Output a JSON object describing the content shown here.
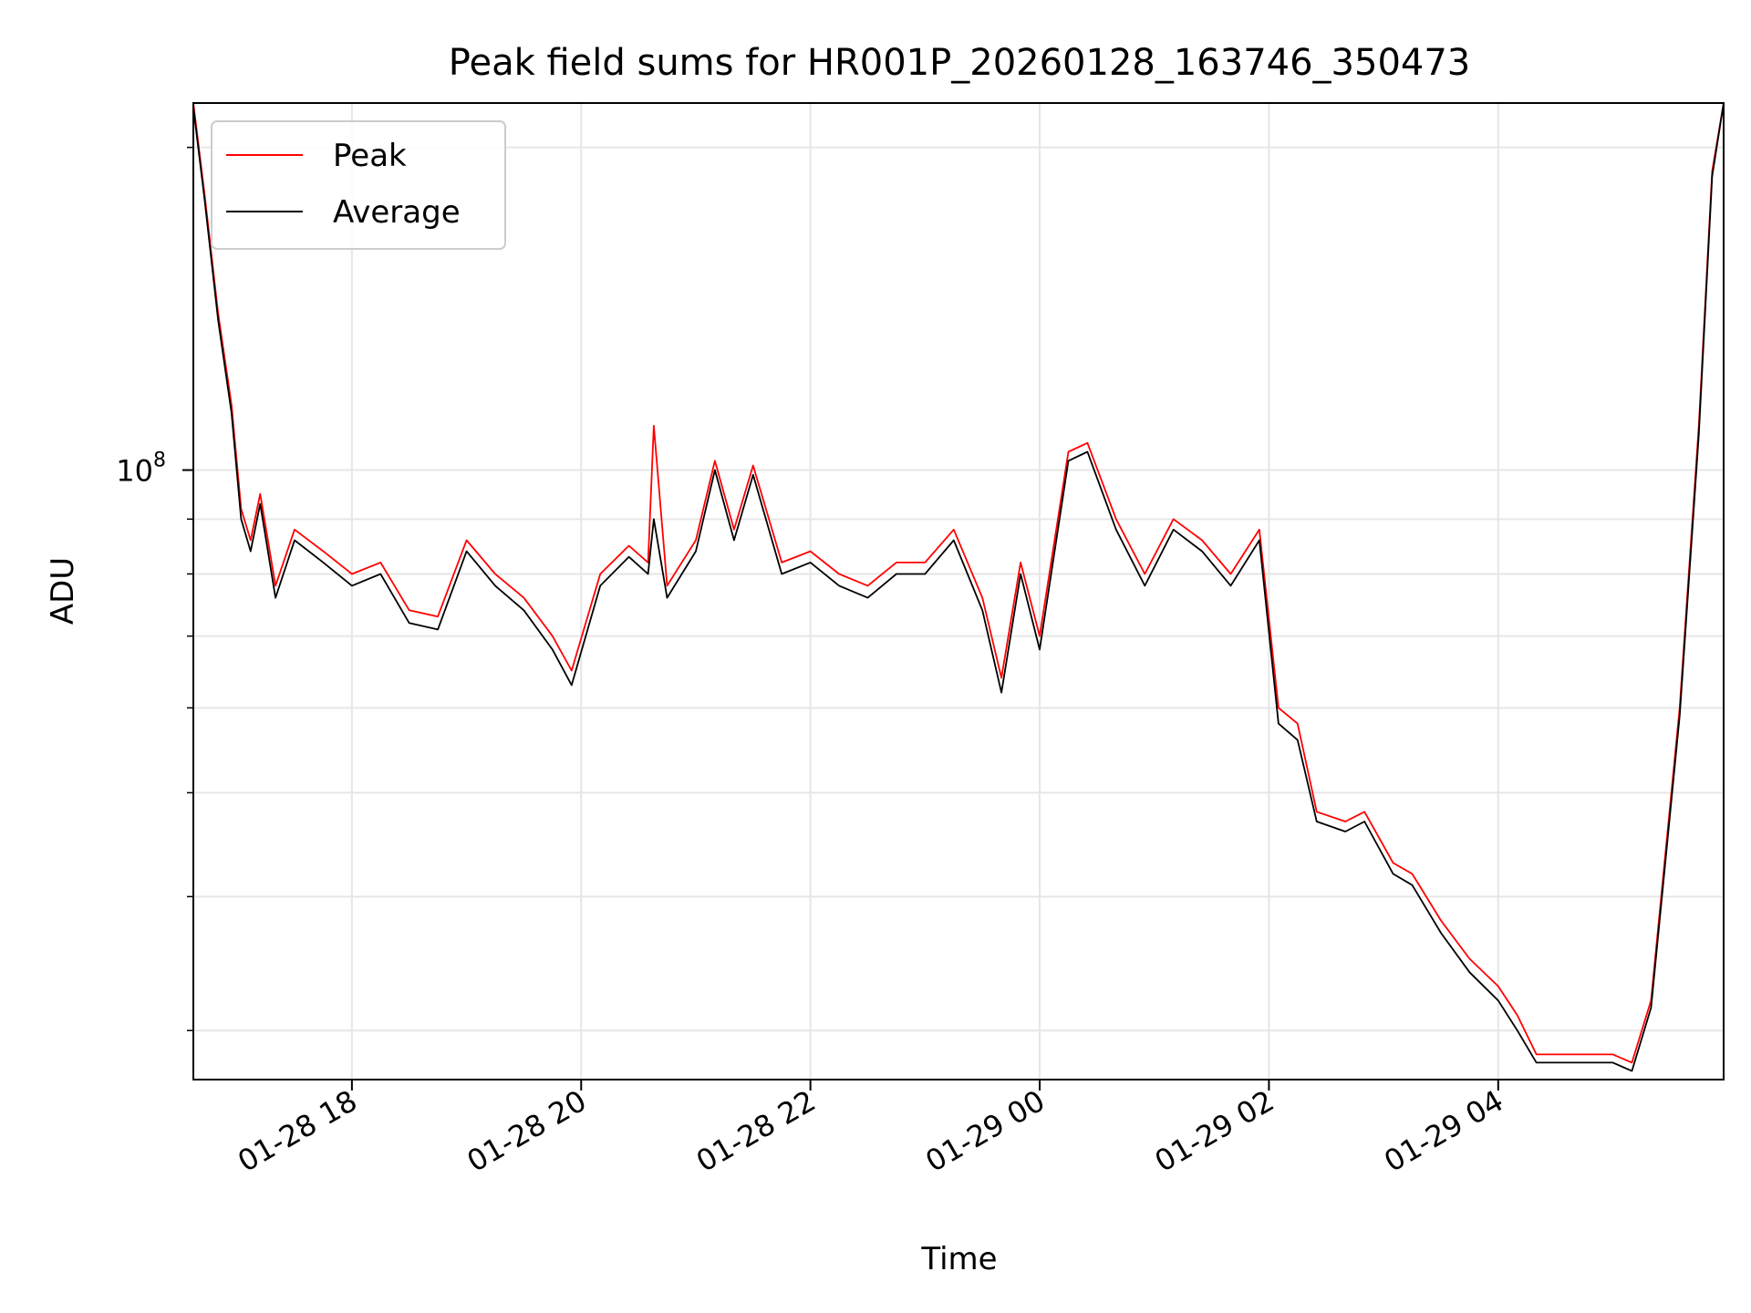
{
  "chart_data": {
    "type": "line",
    "title": "Peak field sums for HR001P_20260128_163746_350473",
    "xlabel": "Time",
    "ylabel": "ADU",
    "x_tick_labels": [
      "01-28 18",
      "01-28 20",
      "01-28 22",
      "01-29 00",
      "01-29 02",
      "01-29 04"
    ],
    "x_ticks": [
      "2026-01-28 18:00",
      "2026-01-28 20:00",
      "2026-01-28 22:00",
      "2026-01-29 00:00",
      "2026-01-29 02:00",
      "2026-01-29 04:00"
    ],
    "xlim": [
      "2026-01-28 16:37",
      "2026-01-29 05:58"
    ],
    "y_scale": "log",
    "y_tick_base": "10",
    "y_tick_exp": "8",
    "y_major_tick": 100000000,
    "y_minor_ticks": [
      30000000,
      40000000,
      50000000,
      60000000,
      70000000,
      80000000,
      90000000,
      200000000
    ],
    "ylim": [
      27000000,
      220000000
    ],
    "grid": true,
    "legend_position": "top-left",
    "series": [
      {
        "name": "Peak",
        "color": "#ff0000",
        "points": [
          [
            "2026-01-28 16:37",
            220000000
          ],
          [
            "2026-01-28 16:43",
            180000000
          ],
          [
            "2026-01-28 16:50",
            140000000
          ],
          [
            "2026-01-28 16:57",
            115000000
          ],
          [
            "2026-01-28 17:02",
            92000000
          ],
          [
            "2026-01-28 17:07",
            86000000
          ],
          [
            "2026-01-28 17:12",
            95000000
          ],
          [
            "2026-01-28 17:20",
            78000000
          ],
          [
            "2026-01-28 17:30",
            88000000
          ],
          [
            "2026-01-28 17:45",
            84000000
          ],
          [
            "2026-01-28 18:00",
            80000000
          ],
          [
            "2026-01-28 18:15",
            82000000
          ],
          [
            "2026-01-28 18:30",
            74000000
          ],
          [
            "2026-01-28 18:45",
            73000000
          ],
          [
            "2026-01-28 19:00",
            86000000
          ],
          [
            "2026-01-28 19:15",
            80000000
          ],
          [
            "2026-01-28 19:30",
            76000000
          ],
          [
            "2026-01-28 19:45",
            70000000
          ],
          [
            "2026-01-28 19:55",
            65000000
          ],
          [
            "2026-01-28 20:10",
            80000000
          ],
          [
            "2026-01-28 20:25",
            85000000
          ],
          [
            "2026-01-28 20:35",
            82000000
          ],
          [
            "2026-01-28 20:38",
            110000000
          ],
          [
            "2026-01-28 20:45",
            78000000
          ],
          [
            "2026-01-28 21:00",
            86000000
          ],
          [
            "2026-01-28 21:10",
            102000000
          ],
          [
            "2026-01-28 21:20",
            88000000
          ],
          [
            "2026-01-28 21:30",
            101000000
          ],
          [
            "2026-01-28 21:45",
            82000000
          ],
          [
            "2026-01-28 22:00",
            84000000
          ],
          [
            "2026-01-28 22:15",
            80000000
          ],
          [
            "2026-01-28 22:30",
            78000000
          ],
          [
            "2026-01-28 22:45",
            82000000
          ],
          [
            "2026-01-28 23:00",
            82000000
          ],
          [
            "2026-01-28 23:15",
            88000000
          ],
          [
            "2026-01-28 23:30",
            76000000
          ],
          [
            "2026-01-28 23:40",
            64000000
          ],
          [
            "2026-01-28 23:50",
            82000000
          ],
          [
            "2026-01-29 00:00",
            70000000
          ],
          [
            "2026-01-29 00:15",
            104000000
          ],
          [
            "2026-01-29 00:25",
            106000000
          ],
          [
            "2026-01-29 00:40",
            90000000
          ],
          [
            "2026-01-29 00:55",
            80000000
          ],
          [
            "2026-01-29 01:10",
            90000000
          ],
          [
            "2026-01-29 01:25",
            86000000
          ],
          [
            "2026-01-29 01:40",
            80000000
          ],
          [
            "2026-01-29 01:55",
            88000000
          ],
          [
            "2026-01-29 02:05",
            60000000
          ],
          [
            "2026-01-29 02:15",
            58000000
          ],
          [
            "2026-01-29 02:25",
            48000000
          ],
          [
            "2026-01-29 02:40",
            47000000
          ],
          [
            "2026-01-29 02:50",
            48000000
          ],
          [
            "2026-01-29 03:05",
            43000000
          ],
          [
            "2026-01-29 03:15",
            42000000
          ],
          [
            "2026-01-29 03:30",
            38000000
          ],
          [
            "2026-01-29 03:45",
            35000000
          ],
          [
            "2026-01-29 04:00",
            33000000
          ],
          [
            "2026-01-29 04:10",
            31000000
          ],
          [
            "2026-01-29 04:20",
            28500000
          ],
          [
            "2026-01-29 04:40",
            28500000
          ],
          [
            "2026-01-29 05:00",
            28500000
          ],
          [
            "2026-01-29 05:10",
            28000000
          ],
          [
            "2026-01-29 05:20",
            32000000
          ],
          [
            "2026-01-29 05:35",
            60000000
          ],
          [
            "2026-01-29 05:45",
            110000000
          ],
          [
            "2026-01-29 05:52",
            190000000
          ],
          [
            "2026-01-29 05:58",
            220000000
          ]
        ]
      },
      {
        "name": "Average",
        "color": "#000000",
        "points": [
          [
            "2026-01-28 16:37",
            218000000
          ],
          [
            "2026-01-28 16:43",
            178000000
          ],
          [
            "2026-01-28 16:50",
            138000000
          ],
          [
            "2026-01-28 16:57",
            113000000
          ],
          [
            "2026-01-28 17:02",
            90000000
          ],
          [
            "2026-01-28 17:07",
            84000000
          ],
          [
            "2026-01-28 17:12",
            93000000
          ],
          [
            "2026-01-28 17:20",
            76000000
          ],
          [
            "2026-01-28 17:30",
            86000000
          ],
          [
            "2026-01-28 17:45",
            82000000
          ],
          [
            "2026-01-28 18:00",
            78000000
          ],
          [
            "2026-01-28 18:15",
            80000000
          ],
          [
            "2026-01-28 18:30",
            72000000
          ],
          [
            "2026-01-28 18:45",
            71000000
          ],
          [
            "2026-01-28 19:00",
            84000000
          ],
          [
            "2026-01-28 19:15",
            78000000
          ],
          [
            "2026-01-28 19:30",
            74000000
          ],
          [
            "2026-01-28 19:45",
            68000000
          ],
          [
            "2026-01-28 19:55",
            63000000
          ],
          [
            "2026-01-28 20:10",
            78000000
          ],
          [
            "2026-01-28 20:25",
            83000000
          ],
          [
            "2026-01-28 20:35",
            80000000
          ],
          [
            "2026-01-28 20:38",
            90000000
          ],
          [
            "2026-01-28 20:45",
            76000000
          ],
          [
            "2026-01-28 21:00",
            84000000
          ],
          [
            "2026-01-28 21:10",
            100000000
          ],
          [
            "2026-01-28 21:20",
            86000000
          ],
          [
            "2026-01-28 21:30",
            99000000
          ],
          [
            "2026-01-28 21:45",
            80000000
          ],
          [
            "2026-01-28 22:00",
            82000000
          ],
          [
            "2026-01-28 22:15",
            78000000
          ],
          [
            "2026-01-28 22:30",
            76000000
          ],
          [
            "2026-01-28 22:45",
            80000000
          ],
          [
            "2026-01-28 23:00",
            80000000
          ],
          [
            "2026-01-28 23:15",
            86000000
          ],
          [
            "2026-01-28 23:30",
            74000000
          ],
          [
            "2026-01-28 23:40",
            62000000
          ],
          [
            "2026-01-28 23:50",
            80000000
          ],
          [
            "2026-01-29 00:00",
            68000000
          ],
          [
            "2026-01-29 00:15",
            102000000
          ],
          [
            "2026-01-29 00:25",
            104000000
          ],
          [
            "2026-01-29 00:40",
            88000000
          ],
          [
            "2026-01-29 00:55",
            78000000
          ],
          [
            "2026-01-29 01:10",
            88000000
          ],
          [
            "2026-01-29 01:25",
            84000000
          ],
          [
            "2026-01-29 01:40",
            78000000
          ],
          [
            "2026-01-29 01:55",
            86000000
          ],
          [
            "2026-01-29 02:05",
            58000000
          ],
          [
            "2026-01-29 02:15",
            56000000
          ],
          [
            "2026-01-29 02:25",
            47000000
          ],
          [
            "2026-01-29 02:40",
            46000000
          ],
          [
            "2026-01-29 02:50",
            47000000
          ],
          [
            "2026-01-29 03:05",
            42000000
          ],
          [
            "2026-01-29 03:15",
            41000000
          ],
          [
            "2026-01-29 03:30",
            37000000
          ],
          [
            "2026-01-29 03:45",
            34000000
          ],
          [
            "2026-01-29 04:00",
            32000000
          ],
          [
            "2026-01-29 04:10",
            30000000
          ],
          [
            "2026-01-29 04:20",
            28000000
          ],
          [
            "2026-01-29 04:40",
            28000000
          ],
          [
            "2026-01-29 05:00",
            28000000
          ],
          [
            "2026-01-29 05:10",
            27500000
          ],
          [
            "2026-01-29 05:20",
            31500000
          ],
          [
            "2026-01-29 05:35",
            59000000
          ],
          [
            "2026-01-29 05:45",
            108000000
          ],
          [
            "2026-01-29 05:52",
            188000000
          ],
          [
            "2026-01-29 05:58",
            220000000
          ]
        ]
      }
    ]
  }
}
